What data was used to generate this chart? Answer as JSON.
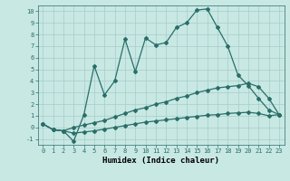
{
  "xlabel": "Humidex (Indice chaleur)",
  "xlim": [
    -0.5,
    23.5
  ],
  "ylim": [
    -1.5,
    10.5
  ],
  "xticks": [
    0,
    1,
    2,
    3,
    4,
    5,
    6,
    7,
    8,
    9,
    10,
    11,
    12,
    13,
    14,
    15,
    16,
    17,
    18,
    19,
    20,
    21,
    22,
    23
  ],
  "yticks": [
    -1,
    0,
    1,
    2,
    3,
    4,
    5,
    6,
    7,
    8,
    9,
    10
  ],
  "bg_color": "#c8e8e4",
  "line_color": "#2a6e68",
  "grid_color": "#a8ccc8",
  "line1_x": [
    0,
    1,
    2,
    3,
    4,
    5,
    6,
    7,
    8,
    9,
    10,
    11,
    12,
    13,
    14,
    15,
    16,
    17,
    18,
    19,
    20,
    21,
    22,
    23
  ],
  "line1_y": [
    0.3,
    -0.2,
    -0.3,
    -1.2,
    1.1,
    5.3,
    2.8,
    4.0,
    7.6,
    4.8,
    7.7,
    7.1,
    7.3,
    8.6,
    9.0,
    10.1,
    10.2,
    8.6,
    7.0,
    4.5,
    3.6,
    2.5,
    1.5,
    1.1
  ],
  "line2_x": [
    0,
    1,
    2,
    3,
    4,
    5,
    6,
    7,
    8,
    9,
    10,
    11,
    12,
    13,
    14,
    15,
    16,
    17,
    18,
    19,
    20,
    21,
    22,
    23
  ],
  "line2_y": [
    0.3,
    -0.2,
    -0.3,
    0.0,
    0.2,
    0.4,
    0.6,
    0.9,
    1.2,
    1.5,
    1.7,
    2.0,
    2.2,
    2.5,
    2.7,
    3.0,
    3.2,
    3.4,
    3.5,
    3.6,
    3.8,
    3.5,
    2.5,
    1.1
  ],
  "line3_x": [
    0,
    1,
    2,
    3,
    4,
    5,
    6,
    7,
    8,
    9,
    10,
    11,
    12,
    13,
    14,
    15,
    16,
    17,
    18,
    19,
    20,
    21,
    22,
    23
  ],
  "line3_y": [
    0.3,
    -0.2,
    -0.3,
    -0.5,
    -0.4,
    -0.3,
    -0.15,
    0.0,
    0.15,
    0.3,
    0.45,
    0.55,
    0.65,
    0.75,
    0.85,
    0.95,
    1.05,
    1.1,
    1.2,
    1.25,
    1.3,
    1.2,
    1.0,
    1.1
  ],
  "marker": "D",
  "markersize": 2.0,
  "linewidth": 0.9,
  "tick_fontsize": 5.0,
  "xlabel_fontsize": 6.5
}
